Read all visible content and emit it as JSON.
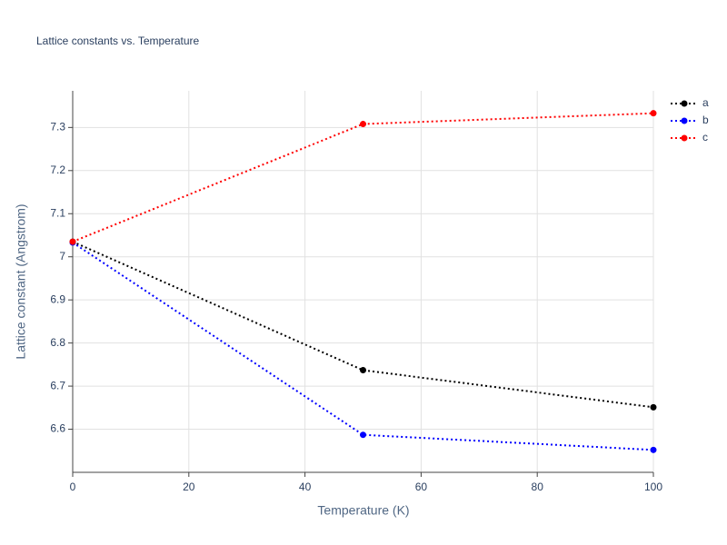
{
  "chart_data": {
    "type": "line",
    "title": "Lattice constants vs. Temperature",
    "x_label": "Temperature (K)",
    "y_label": "Lattice constant (Angstrom)",
    "x": [
      0,
      50,
      100
    ],
    "series": [
      {
        "name": "a",
        "color": "#000000",
        "values": [
          7.035,
          6.737,
          6.651
        ]
      },
      {
        "name": "b",
        "color": "#0000ff",
        "values": [
          7.033,
          6.587,
          6.552
        ]
      },
      {
        "name": "c",
        "color": "#ff0000",
        "values": [
          7.035,
          7.308,
          7.333
        ]
      }
    ],
    "xlim": [
      0,
      100
    ],
    "xticks": [
      0,
      20,
      40,
      60,
      80,
      100
    ],
    "ylim": [
      6.5,
      7.385
    ],
    "yticks": [
      6.6,
      6.7,
      6.8,
      6.9,
      7,
      7.1,
      7.2,
      7.3
    ],
    "grid": true,
    "legend": "top-right"
  }
}
